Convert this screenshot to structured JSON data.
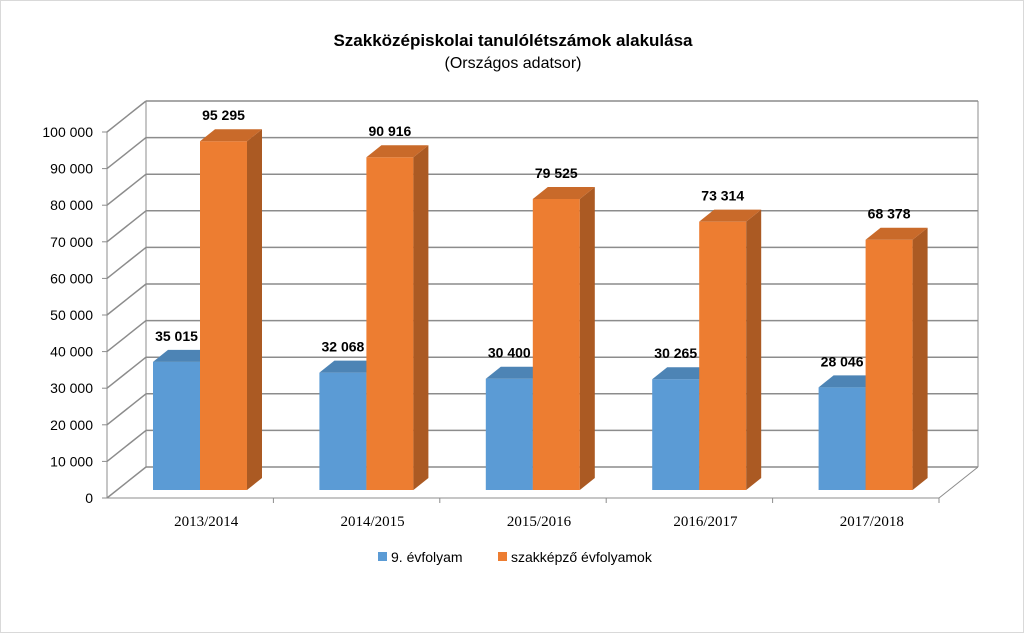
{
  "chart_data": {
    "type": "bar",
    "title": "Szakközépiskolai tanulólétszámok alakulása",
    "subtitle": "(Országos adatsor)",
    "categories": [
      "2013/2014",
      "2014/2015",
      "2015/2016",
      "2016/2017",
      "2017/2018"
    ],
    "series": [
      {
        "name": "9. évfolyam",
        "values": [
          35015,
          32068,
          30400,
          30265,
          28046
        ],
        "labels": [
          "35 015",
          "32 068",
          "30 400",
          "30 265",
          "28 046"
        ],
        "color": "#5b9bd5"
      },
      {
        "name": "szakképző évfolyamok",
        "values": [
          95295,
          90916,
          79525,
          73314,
          68378
        ],
        "labels": [
          "95 295",
          "90 916",
          "79 525",
          "73 314",
          "68 378"
        ],
        "color": "#ed7d31"
      }
    ],
    "yticks": [
      "0",
      "10 000",
      "20 000",
      "30 000",
      "40 000",
      "50 000",
      "60 000",
      "70 000",
      "80 000",
      "90 000",
      "100 000"
    ],
    "ylim": [
      0,
      100000
    ],
    "ytick_step": 10000,
    "grid": true,
    "view": "3d-clustered-column",
    "legend_position": "bottom"
  }
}
